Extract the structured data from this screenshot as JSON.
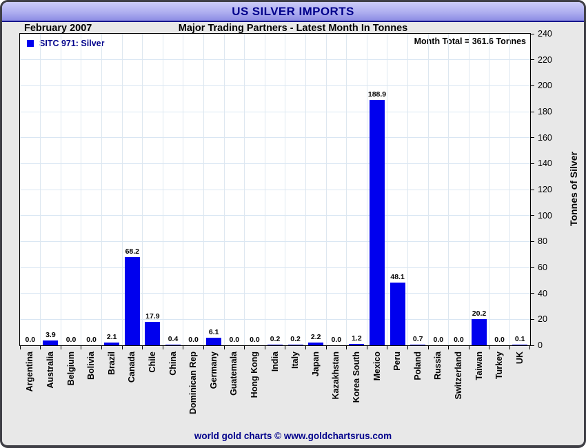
{
  "window": {
    "title": "US SILVER IMPORTS"
  },
  "header": {
    "date_label": "February 2007",
    "subtitle": "Major Trading Partners - Latest Month In Tonnes"
  },
  "legend": {
    "label": "SITC 971: Silver"
  },
  "annotations": {
    "month_total": "Month Total = 361.6 Tonnes"
  },
  "footer": {
    "credit": "world gold charts © www.goldchartsrus.com"
  },
  "colors": {
    "bar": "#0000ee",
    "accent_navy": "#00008b",
    "grid": "#d9e6f3",
    "window_bg": "#e8e8e8",
    "titlebar_top": "#ccccf8",
    "titlebar_bottom": "#8c8ce4"
  },
  "icons": {
    "legend_swatch": "blue-square"
  },
  "chart_data": {
    "type": "bar",
    "title": "US SILVER IMPORTS",
    "subtitle": "Major Trading Partners - Latest Month In Tonnes",
    "period": "February 2007",
    "legend": [
      "SITC 971: Silver"
    ],
    "annotation": "Month Total = 361.6 Tonnes",
    "categories": [
      "Argentina",
      "Australia",
      "Belgium",
      "Bolivia",
      "Brazil",
      "Canada",
      "Chile",
      "China",
      "Dominican Rep",
      "Germany",
      "Guatemala",
      "Hong Kong",
      "India",
      "Italy",
      "Japan",
      "Kazakhstan",
      "Korea South",
      "Mexico",
      "Peru",
      "Poland",
      "Russia",
      "Switzerland",
      "Taiwan",
      "Turkey",
      "UK"
    ],
    "values": [
      0.0,
      3.9,
      0.0,
      0.0,
      2.1,
      68.2,
      17.9,
      0.4,
      0.0,
      6.1,
      0.0,
      0.0,
      0.2,
      0.2,
      2.2,
      0.0,
      1.2,
      188.9,
      48.1,
      0.7,
      0.0,
      0.0,
      20.2,
      0.0,
      0.1
    ],
    "xlabel": "",
    "ylabel": "Tonnes of Silver",
    "ylim": [
      0,
      240
    ],
    "ytick_step": 20,
    "grid": true,
    "legend_position": "top-left",
    "yaxis_side": "right",
    "bar_color": "#0000ee"
  }
}
